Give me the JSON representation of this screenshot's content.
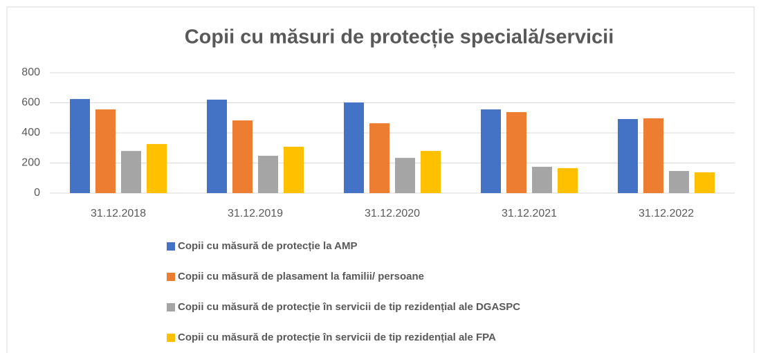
{
  "chart_data": {
    "type": "bar",
    "title": "Copii cu măsuri de protecție specială/servicii",
    "categories": [
      "31.12.2018",
      "31.12.2019",
      "31.12.2020",
      "31.12.2021",
      "31.12.2022"
    ],
    "series": [
      {
        "name": "Copii cu măsură de protecție la AMP",
        "color": "#4472c4",
        "values": [
          625,
          621,
          602,
          556,
          492
        ]
      },
      {
        "name": "Copii cu măsură de plasament la familii/ persoane",
        "color": "#ed7d31",
        "values": [
          556,
          483,
          464,
          538,
          497
        ]
      },
      {
        "name": "Copii cu măsură de protecție în servicii de tip rezidențial ale DGASPC",
        "color": "#a5a5a5",
        "values": [
          280,
          248,
          234,
          175,
          147
        ]
      },
      {
        "name": "Copii cu măsură de protecție în servicii de tip rezidențial ale FPA",
        "color": "#ffc000",
        "values": [
          326,
          308,
          280,
          166,
          138
        ]
      }
    ],
    "ylim": [
      0,
      800
    ],
    "yticks": [
      0,
      200,
      400,
      600,
      800
    ],
    "grid": true
  }
}
